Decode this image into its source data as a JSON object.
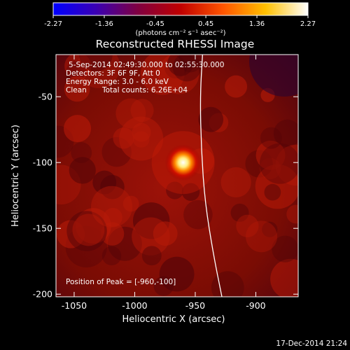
{
  "chart_data": {
    "type": "heatmap",
    "title": "Reconstructed RHESSI Image",
    "xlabel": "Heliocentric X (arcsec)",
    "ylabel": "Heliocentric Y (arcsec)",
    "xlim": [
      -1065,
      -865
    ],
    "ylim": [
      -202,
      -18
    ],
    "xticks": [
      "-1050",
      "-1000",
      "-950",
      "-900"
    ],
    "yticks": [
      "-50",
      "-100",
      "-150",
      "-200"
    ],
    "xtick_values": [
      -1050,
      -1000,
      -950,
      -900
    ],
    "ytick_values": [
      -50,
      -100,
      -150,
      -200
    ],
    "colorbar": {
      "label": "(photons cm⁻² s⁻¹ asec⁻²)",
      "ticks": [
        "-2.27",
        "-1.36",
        "-0.45",
        "0.45",
        "1.36",
        "2.27"
      ],
      "tick_values": [
        -2.27,
        -1.36,
        -0.45,
        0.45,
        1.36,
        2.27
      ],
      "range": [
        -2.27,
        2.27
      ],
      "colormap_stops": [
        "#0000ff",
        "#3a00b4",
        "#800040",
        "#c00000",
        "#ff5500",
        "#ffc000",
        "#ffffff"
      ]
    },
    "annotations": {
      "time_range": "5-Sep-2014 02:49:30.000 to 02:55:30.000",
      "detectors": "Detectors: 3F 6F 9F, Att 0",
      "energy": "Energy Range: 3.0 - 6.0 keV",
      "clean": "Clean",
      "total_counts": "Total counts: 6.26E+04",
      "peak": "Position of Peak = [-960,-100]"
    },
    "peak": {
      "x": -960,
      "y": -100
    },
    "limb_curve": [
      {
        "x": -944,
        "y": -18
      },
      {
        "x": -946,
        "y": -50
      },
      {
        "x": -945,
        "y": -90
      },
      {
        "x": -942,
        "y": -130
      },
      {
        "x": -935,
        "y": -170
      },
      {
        "x": -928,
        "y": -202
      }
    ]
  },
  "footer": {
    "date": "17-Dec-2014 21:24"
  }
}
